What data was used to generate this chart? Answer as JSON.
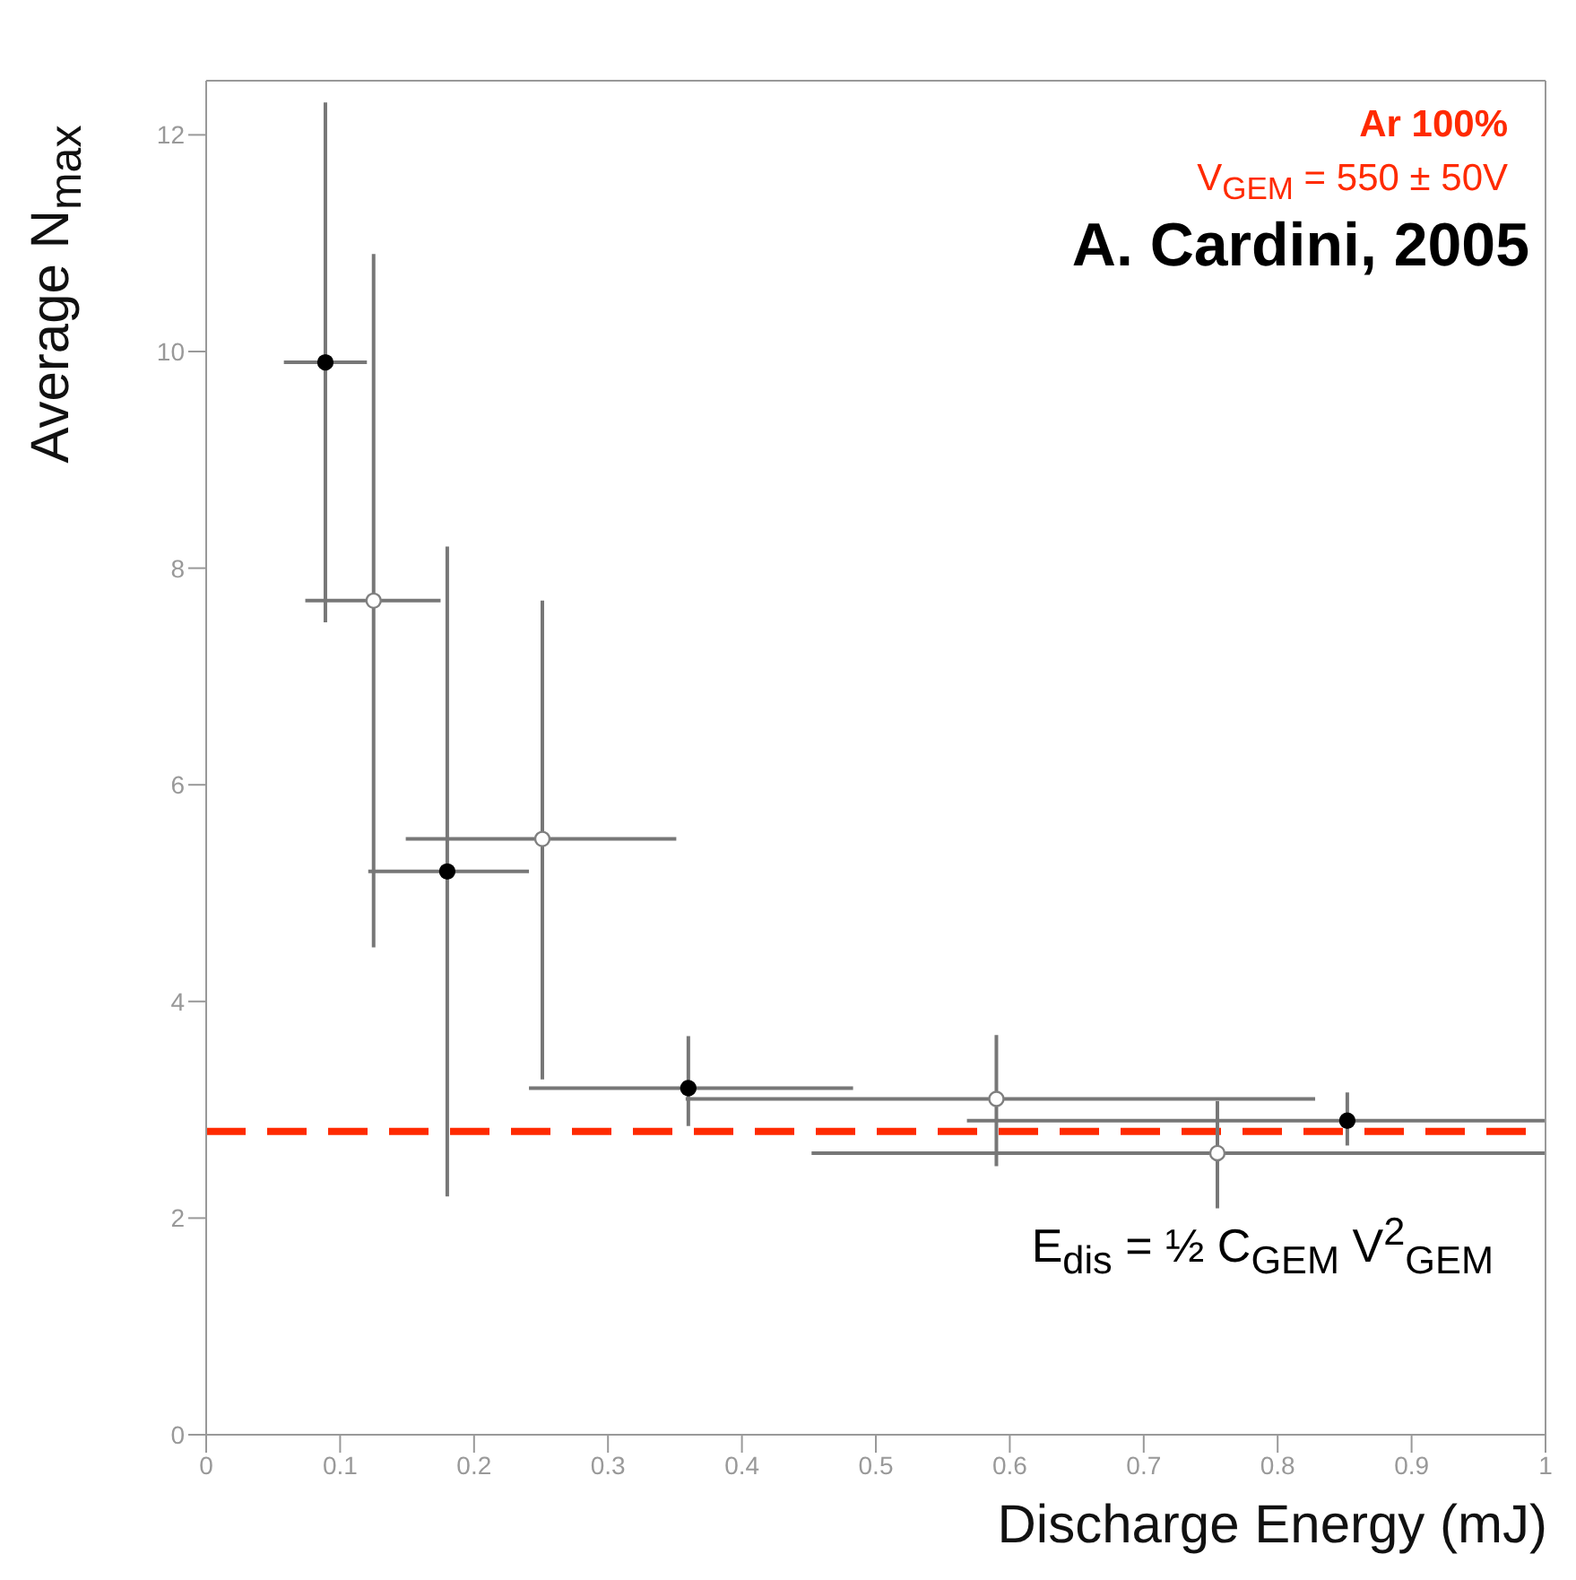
{
  "chart_data": {
    "type": "scatter",
    "xlabel": "Discharge Energy (mJ)",
    "ylabel": "Average N$_{max}$",
    "annotations": [
      "Ar 100%",
      "V$_{GEM}$ = 550 ± 50V",
      "A. Cardini, 2005",
      "E$_{dis}$ = ½ C$_{GEM}$ V$^{2}$$_{GEM}$"
    ],
    "series": [
      {
        "color": "#000000",
        "x": [
          0.089,
          0.18,
          0.36,
          0.852
        ],
        "values": [
          9.9,
          5.2,
          3.2,
          2.9
        ],
        "errors": [
          [
            7.5,
            12.3
          ],
          [
            2.2,
            8.2
          ],
          [
            2.85,
            3.68
          ],
          [
            2.67,
            3.16
          ]
        ],
        "xerrors": [
          [
            0.058,
            0.12
          ],
          [
            0.121,
            0.241
          ],
          [
            0.241,
            0.483
          ],
          [
            0.568,
            1.0
          ]
        ]
      },
      {
        "color": "#808080",
        "x": [
          0.125,
          0.251,
          0.59,
          0.755
        ],
        "values": [
          7.7,
          5.5,
          3.1,
          2.6
        ],
        "errors": [
          [
            4.5,
            10.9
          ],
          [
            3.28,
            7.7
          ],
          [
            2.48,
            3.69
          ],
          [
            2.09,
            3.08
          ]
        ],
        "xerrors": [
          [
            0.074,
            0.175
          ],
          [
            0.149,
            0.351
          ],
          [
            0.358,
            0.828
          ],
          [
            0.452,
            1.0
          ]
        ]
      }
    ],
    "xlim": [
      0,
      1
    ],
    "xticks": [
      0,
      0.1,
      0.2,
      0.3,
      0.4,
      0.5,
      0.6,
      0.7,
      0.8,
      0.9,
      1
    ],
    "ylim": [
      0,
      12.5
    ],
    "yticks": [
      0,
      2,
      4,
      6,
      8,
      10,
      12
    ],
    "ref_lines": [
      {
        "axis": "y",
        "value": 2.8,
        "color": "#ff2a00",
        "line_style": "dashed"
      }
    ],
    "marker": "circle"
  }
}
